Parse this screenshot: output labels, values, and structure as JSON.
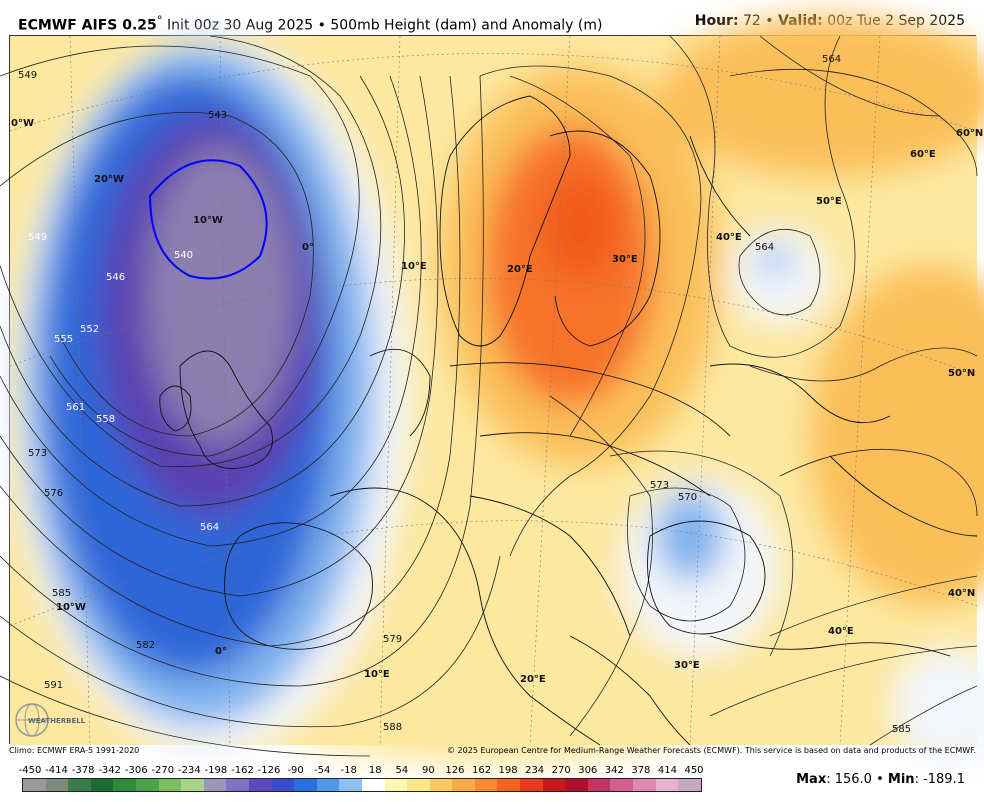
{
  "header": {
    "model": "ECMWF AIFS 0.25",
    "degree": "°",
    "init": "Init 00z 30 Aug 2025",
    "sep": "•",
    "field": "500mb Height (dam) and Anomaly (m)",
    "hour_label": "Hour:",
    "hour_value": "72",
    "valid_label": "Valid:",
    "valid_value": "00z Tue 2 Sep 2025"
  },
  "map": {
    "lat_labels": [
      "60°N",
      "50°N",
      "40°N"
    ],
    "lon_labels": [
      "0°W",
      "20°W",
      "10°W",
      "0°",
      "10°E",
      "20°E",
      "30°E",
      "40°E",
      "50°E",
      "60°E",
      "10°W",
      "0°",
      "10°E",
      "20°E",
      "30°E",
      "40°E"
    ],
    "contour_labels": [
      "549",
      "543",
      "540",
      "549",
      "546",
      "552",
      "555",
      "558",
      "561",
      "564",
      "573",
      "576",
      "585",
      "582",
      "591",
      "588",
      "579",
      "573",
      "570",
      "564",
      "564",
      "585"
    ],
    "colors": {
      "strong_neg": "#5a3fb0",
      "neg": "#2f66d8",
      "weak_neg": "#7fb2ee",
      "neutral": "#f3f6fb",
      "weak_pos": "#fde8a0",
      "pos": "#fbbf5a",
      "strong_pos": "#f7732a"
    },
    "logo_text": "WEATHERBELL"
  },
  "credits": {
    "climo": "Climo: ECMWF ERA-5 1991-2020",
    "copyright": "© 2025 European Centre for Medium-Range Weather Forecasts (ECMWF). This service is based on data and products of the ECMWF."
  },
  "legend": {
    "labels": [
      "-450",
      "-414",
      "-378",
      "-342",
      "-306",
      "-270",
      "-234",
      "-198",
      "-162",
      "-126",
      "-90",
      "-54",
      "-18",
      "18",
      "54",
      "90",
      "126",
      "162",
      "198",
      "234",
      "270",
      "306",
      "342",
      "378",
      "414",
      "450"
    ],
    "colors": [
      "#9a9a9a",
      "#7e8a7e",
      "#3b7a4a",
      "#1e6b34",
      "#2e8b3e",
      "#4ea24c",
      "#7cbf62",
      "#a9d388",
      "#9a96b8",
      "#7b74c4",
      "#5a4cc0",
      "#3b4bd0",
      "#2a6fe0",
      "#4f98ea",
      "#8fbff2",
      "#ffffff",
      "#fff6b0",
      "#fde58a",
      "#fcc864",
      "#fbab44",
      "#f98a2e",
      "#f5631e",
      "#e83a1a",
      "#c81a1e",
      "#b0102a",
      "#c43460",
      "#d45f8e",
      "#de8ab0",
      "#e8b2cc",
      "#c8a8c0"
    ]
  },
  "maxmin": {
    "max_label": "Max",
    "max_value": "156.0",
    "min_label": "Min",
    "min_value": "-189.1"
  }
}
